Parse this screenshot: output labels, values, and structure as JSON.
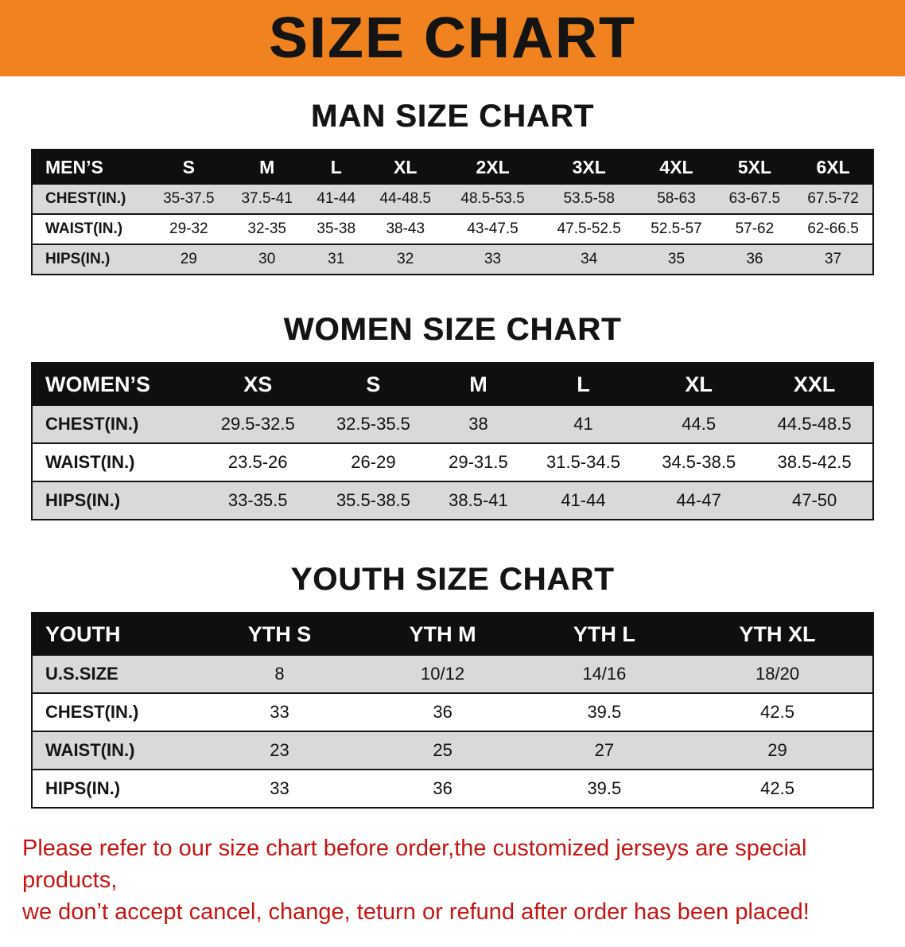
{
  "banner": {
    "title": "SIZE CHART",
    "bg_color": "#f0831f"
  },
  "sections": [
    {
      "heading": "MAN SIZE CHART",
      "table": {
        "header": [
          "MEN’S",
          "S",
          "M",
          "L",
          "XL",
          "2XL",
          "3XL",
          "4XL",
          "5XL",
          "6XL"
        ],
        "rows": [
          [
            "CHEST(IN.)",
            "35-37.5",
            "37.5-41",
            "41-44",
            "44-48.5",
            "48.5-53.5",
            "53.5-58",
            "58-63",
            "63-67.5",
            "67.5-72"
          ],
          [
            "WAIST(IN.)",
            "29-32",
            "32-35",
            "35-38",
            "38-43",
            "43-47.5",
            "47.5-52.5",
            "52.5-57",
            "57-62",
            "62-66.5"
          ],
          [
            "HIPS(IN.)",
            "29",
            "30",
            "31",
            "32",
            "33",
            "34",
            "35",
            "36",
            "37"
          ]
        ]
      }
    },
    {
      "heading": "WOMEN SIZE CHART",
      "table": {
        "header": [
          "WOMEN’S",
          "XS",
          "S",
          "M",
          "L",
          "XL",
          "XXL"
        ],
        "rows": [
          [
            "CHEST(IN.)",
            "29.5-32.5",
            "32.5-35.5",
            "38",
            "41",
            "44.5",
            "44.5-48.5"
          ],
          [
            "WAIST(IN.)",
            "23.5-26",
            "26-29",
            "29-31.5",
            "31.5-34.5",
            "34.5-38.5",
            "38.5-42.5"
          ],
          [
            "HIPS(IN.)",
            "33-35.5",
            "35.5-38.5",
            "38.5-41",
            "41-44",
            "44-47",
            "47-50"
          ]
        ]
      }
    },
    {
      "heading": "YOUTH SIZE CHART",
      "table": {
        "header": [
          "YOUTH",
          "YTH S",
          "YTH M",
          "YTH L",
          "YTH XL"
        ],
        "rows": [
          [
            "U.S.SIZE",
            "8",
            "10/12",
            "14/16",
            "18/20"
          ],
          [
            "CHEST(IN.)",
            "33",
            "36",
            "39.5",
            "42.5"
          ],
          [
            "WAIST(IN.)",
            "23",
            "25",
            "27",
            "29"
          ],
          [
            "HIPS(IN.)",
            "33",
            "36",
            "39.5",
            "42.5"
          ]
        ]
      }
    }
  ],
  "notice": {
    "line1": "Please refer to our size chart before order,the customized jerseys are special products,",
    "line2": "we don’t accept cancel, change, teturn or refund after order has been placed!",
    "color": "#c81414"
  }
}
